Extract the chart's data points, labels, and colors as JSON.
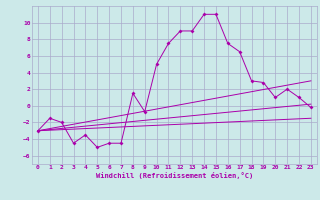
{
  "xlabel": "Windchill (Refroidissement éolien,°C)",
  "background_color": "#cce9e9",
  "grid_color": "#aaaacc",
  "line_color": "#aa00aa",
  "xlim": [
    -0.5,
    23.5
  ],
  "ylim": [
    -7,
    12
  ],
  "xticks": [
    0,
    1,
    2,
    3,
    4,
    5,
    6,
    7,
    8,
    9,
    10,
    11,
    12,
    13,
    14,
    15,
    16,
    17,
    18,
    19,
    20,
    21,
    22,
    23
  ],
  "yticks": [
    -6,
    -4,
    -2,
    0,
    2,
    4,
    6,
    8,
    10
  ],
  "curve1_x": [
    0,
    1,
    2,
    3,
    4,
    5,
    6,
    7,
    8,
    9,
    10,
    11,
    12,
    13,
    14,
    15,
    16,
    17,
    18,
    19,
    20,
    21,
    22,
    23
  ],
  "curve1_y": [
    -3,
    -1.5,
    -2,
    -4.5,
    -3.5,
    -5,
    -4.5,
    -4.5,
    1.5,
    -0.7,
    5,
    7.5,
    9,
    9,
    11,
    11,
    7.5,
    6.5,
    3,
    2.8,
    1,
    2,
    1,
    -0.2
  ],
  "line1_x": [
    0,
    23
  ],
  "line1_y": [
    -3,
    3
  ],
  "line2_x": [
    0,
    23
  ],
  "line2_y": [
    -3,
    0.2
  ],
  "line3_x": [
    0,
    23
  ],
  "line3_y": [
    -3,
    -1.5
  ]
}
